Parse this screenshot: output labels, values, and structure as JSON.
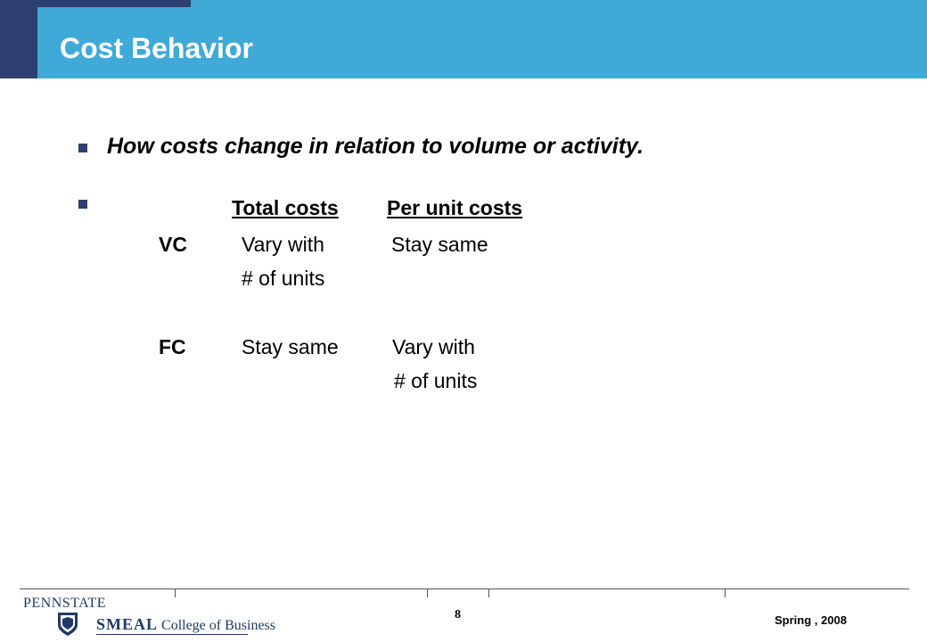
{
  "slide": {
    "title": "Cost Behavior",
    "intro": "How costs change in relation to volume or activity."
  },
  "table": {
    "headers": [
      "Total costs",
      "Per unit costs"
    ],
    "rows": [
      {
        "label": "VC",
        "total": [
          "Vary with",
          "# of units"
        ],
        "per_unit": [
          "Stay same"
        ]
      },
      {
        "label": "FC",
        "total": [
          "Stay same"
        ],
        "per_unit": [
          "Vary with",
          "# of units"
        ]
      }
    ]
  },
  "footer": {
    "logo_pennstate": "PENNSTATE",
    "logo_smeal": "SMEAL",
    "logo_college": "College of Business",
    "page_number": "8",
    "date": "Spring , 2008"
  },
  "colors": {
    "header_blue": "#3fa9d8",
    "header_navy": "#2d3f6e",
    "bullet": "#2d3f6e",
    "logo": "#1f3a66"
  }
}
